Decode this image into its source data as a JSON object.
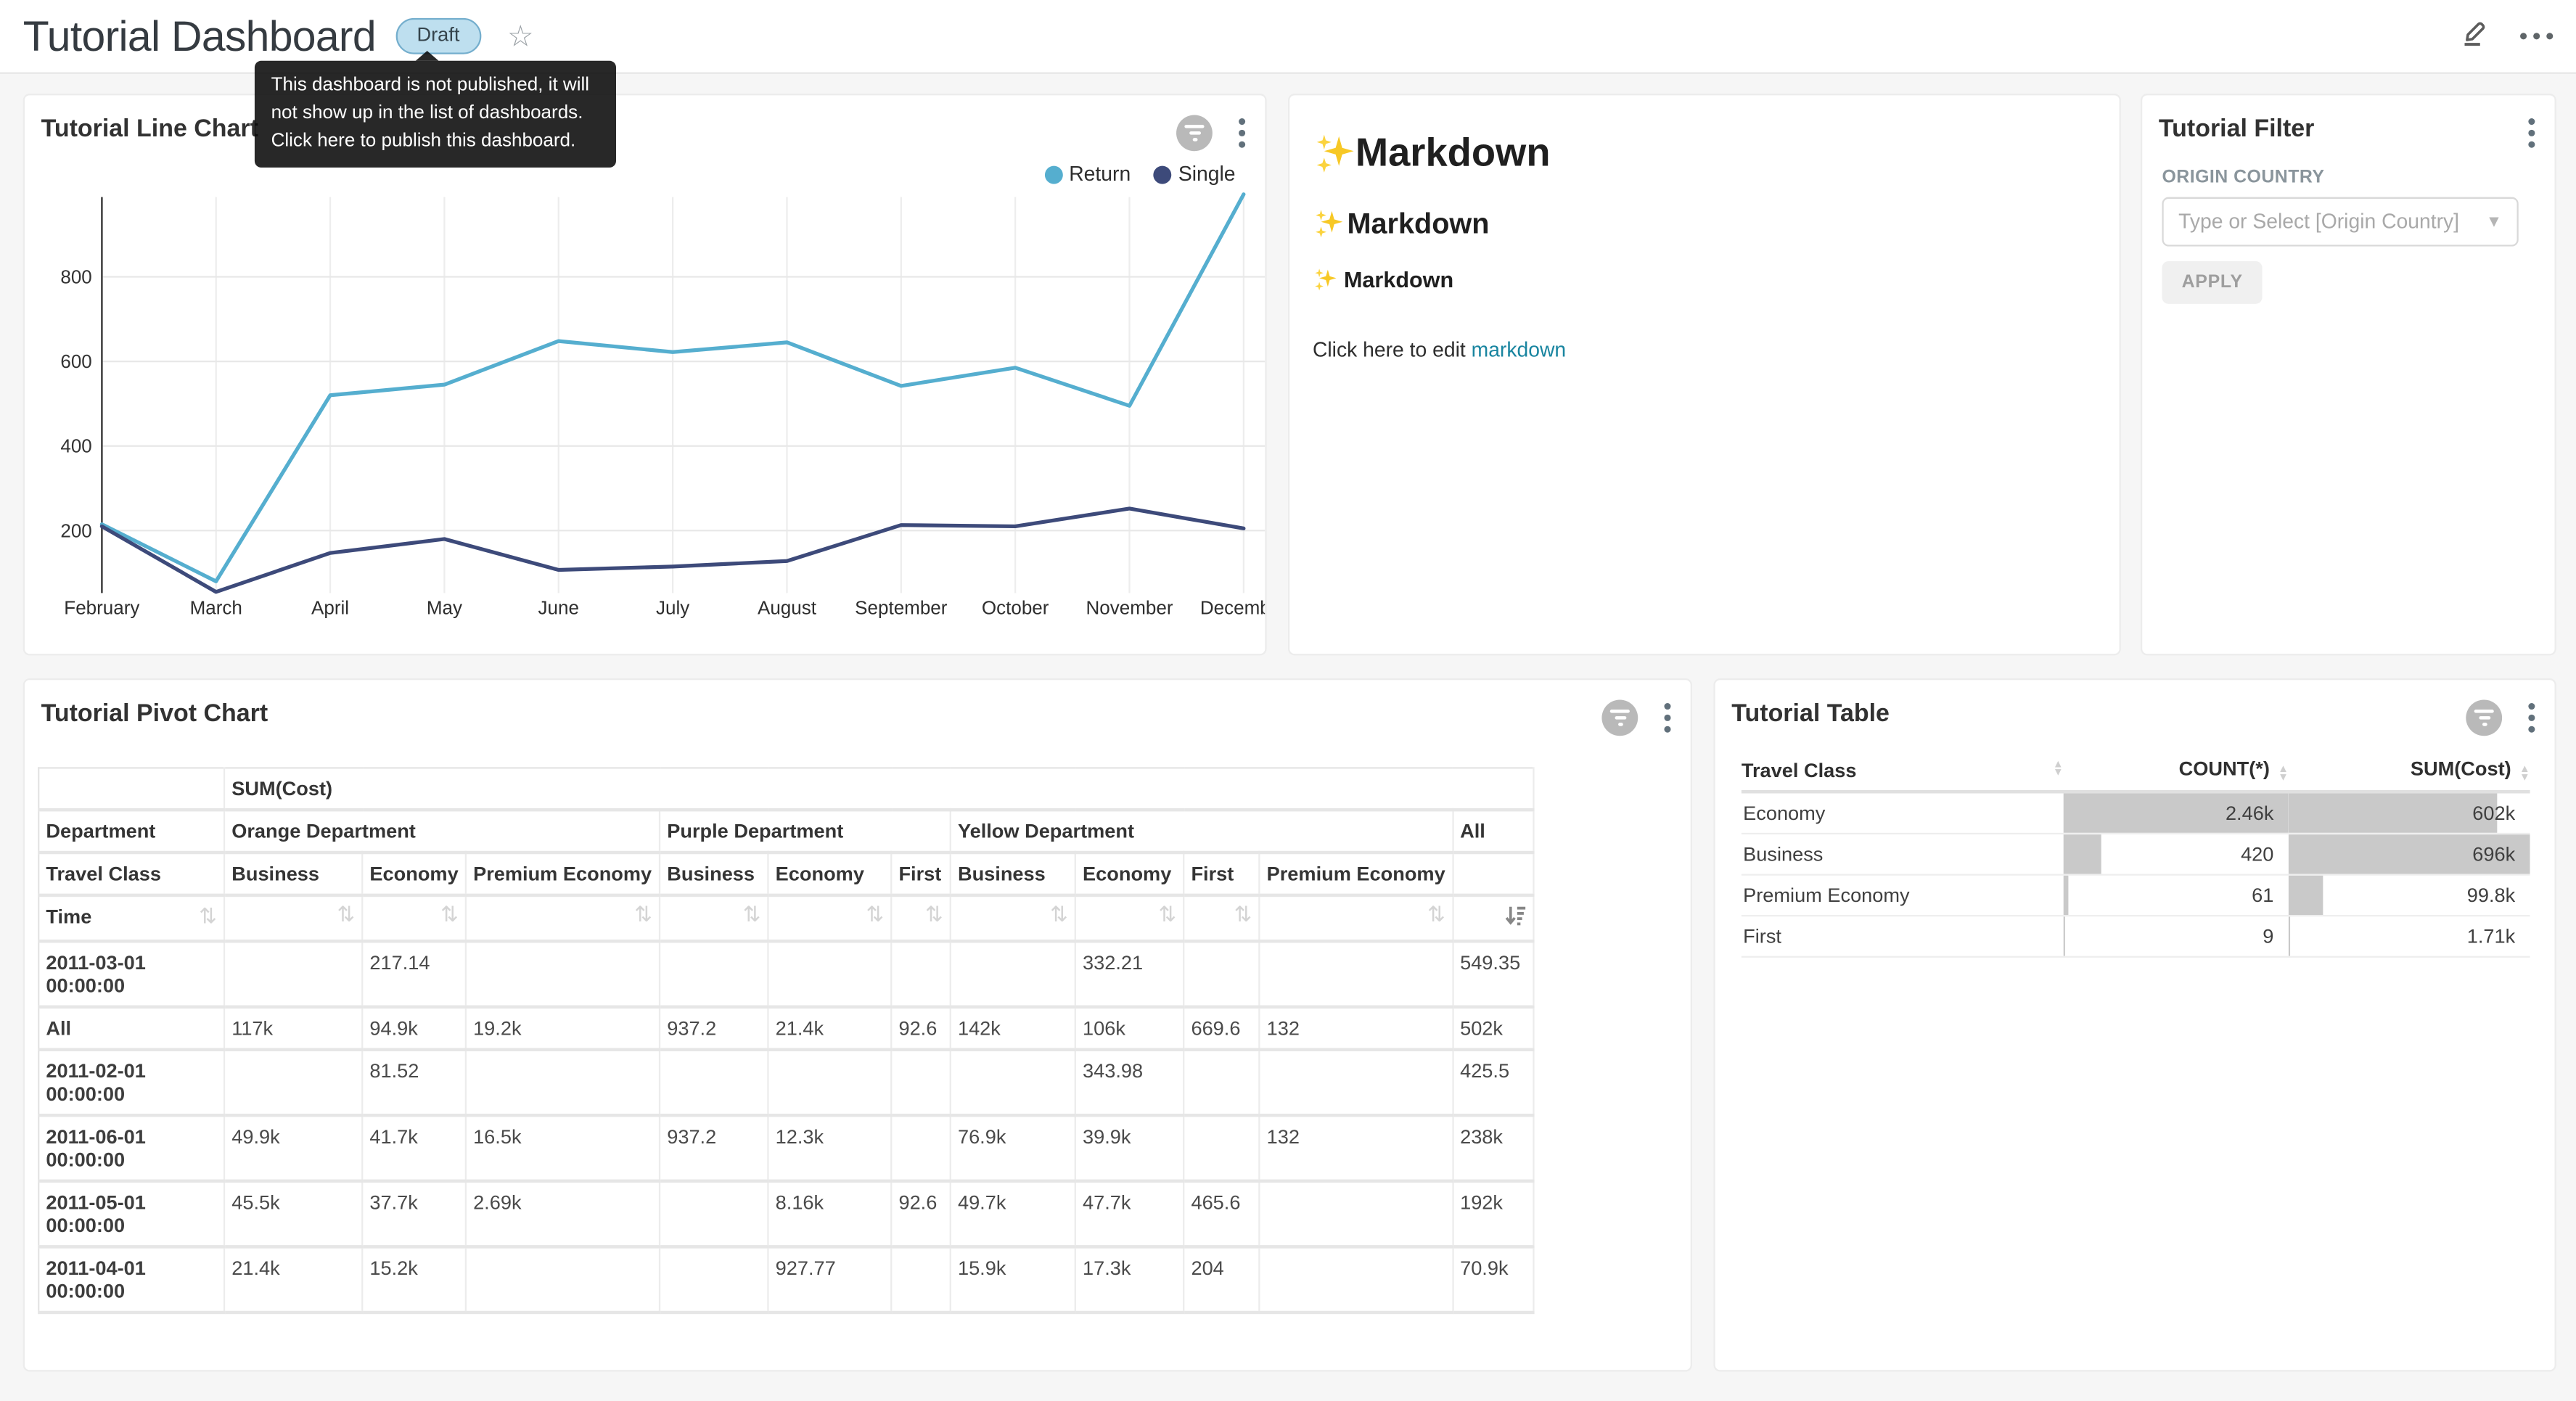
{
  "header": {
    "title": "Tutorial Dashboard",
    "status_badge": "Draft",
    "tooltip": {
      "line1": "This dashboard is not published, it will",
      "line2": "not show up in the list of dashboards.",
      "line3": "Click here to publish this dashboard."
    }
  },
  "line_chart_card": {
    "title": "Tutorial Line Chart"
  },
  "chart_data": {
    "type": "line",
    "title": "Tutorial Line Chart",
    "x": [
      "February",
      "March",
      "April",
      "May",
      "June",
      "July",
      "August",
      "September",
      "October",
      "November",
      "December"
    ],
    "series": [
      {
        "name": "Return",
        "color": "#55aecf",
        "values": [
          215,
          80,
          520,
          545,
          648,
          622,
          645,
          542,
          585,
          495,
          995
        ]
      },
      {
        "name": "Single",
        "color": "#3d4a7a",
        "values": [
          210,
          55,
          147,
          180,
          107,
          115,
          128,
          213,
          210,
          252,
          205
        ]
      }
    ],
    "ylim": [
      0,
      1000
    ],
    "yticks": [
      200,
      400,
      600,
      800
    ],
    "grid": true,
    "legend_position": "top-right"
  },
  "markdown_card": {
    "h1": "Markdown",
    "h2": "Markdown",
    "h3": "Markdown",
    "paragraph": "Click here to edit ",
    "link_text": "markdown"
  },
  "filter_card": {
    "title": "Tutorial Filter",
    "field_label": "ORIGIN COUNTRY",
    "select_placeholder": "Type or Select [Origin Country]",
    "apply_label": "APPLY"
  },
  "pivot_card": {
    "title": "Tutorial Pivot Chart",
    "metric_header": "SUM(Cost)",
    "dept_row_label": "Department",
    "class_row_label": "Travel Class",
    "time_row_label": "Time",
    "all_label": "All",
    "groups": [
      {
        "name": "Orange Department",
        "cols": [
          "Business",
          "Economy",
          "Premium Economy"
        ]
      },
      {
        "name": "Purple Department",
        "cols": [
          "Business",
          "Economy",
          "First"
        ]
      },
      {
        "name": "Yellow Department",
        "cols": [
          "Business",
          "Economy",
          "First",
          "Premium Economy"
        ]
      }
    ],
    "rows": [
      {
        "label": "2011-03-01 00:00:00",
        "values": [
          "",
          "217.14",
          "",
          "",
          "",
          "",
          "",
          "332.21",
          "",
          ""
        ],
        "all": "549.35"
      },
      {
        "label": "All",
        "values": [
          "117k",
          "94.9k",
          "19.2k",
          "937.2",
          "21.4k",
          "92.6",
          "142k",
          "106k",
          "669.6",
          "132"
        ],
        "all": "502k"
      },
      {
        "label": "2011-02-01 00:00:00",
        "values": [
          "",
          "81.52",
          "",
          "",
          "",
          "",
          "",
          "343.98",
          "",
          ""
        ],
        "all": "425.5"
      },
      {
        "label": "2011-06-01 00:00:00",
        "values": [
          "49.9k",
          "41.7k",
          "16.5k",
          "937.2",
          "12.3k",
          "",
          "76.9k",
          "39.9k",
          "",
          "132"
        ],
        "all": "238k"
      },
      {
        "label": "2011-05-01 00:00:00",
        "values": [
          "45.5k",
          "37.7k",
          "2.69k",
          "",
          "8.16k",
          "92.6",
          "49.7k",
          "47.7k",
          "465.6",
          ""
        ],
        "all": "192k"
      },
      {
        "label": "2011-04-01 00:00:00",
        "values": [
          "21.4k",
          "15.2k",
          "",
          "",
          "927.77",
          "",
          "15.9k",
          "17.3k",
          "204",
          ""
        ],
        "all": "70.9k"
      }
    ]
  },
  "table_card": {
    "title": "Tutorial Table",
    "columns": [
      "Travel Class",
      "COUNT(*)",
      "SUM(Cost)"
    ],
    "bar_color": "#c9c9c9",
    "rows": [
      {
        "travel_class": "Economy",
        "count": "2.46k",
        "count_num": 2460,
        "sum": "602k",
        "sum_num": 602000
      },
      {
        "travel_class": "Business",
        "count": "420",
        "count_num": 420,
        "sum": "696k",
        "sum_num": 696000
      },
      {
        "travel_class": "Premium Economy",
        "count": "61",
        "count_num": 61,
        "sum": "99.8k",
        "sum_num": 99800
      },
      {
        "travel_class": "First",
        "count": "9",
        "count_num": 9,
        "sum": "1.71k",
        "sum_num": 1710
      }
    ]
  }
}
